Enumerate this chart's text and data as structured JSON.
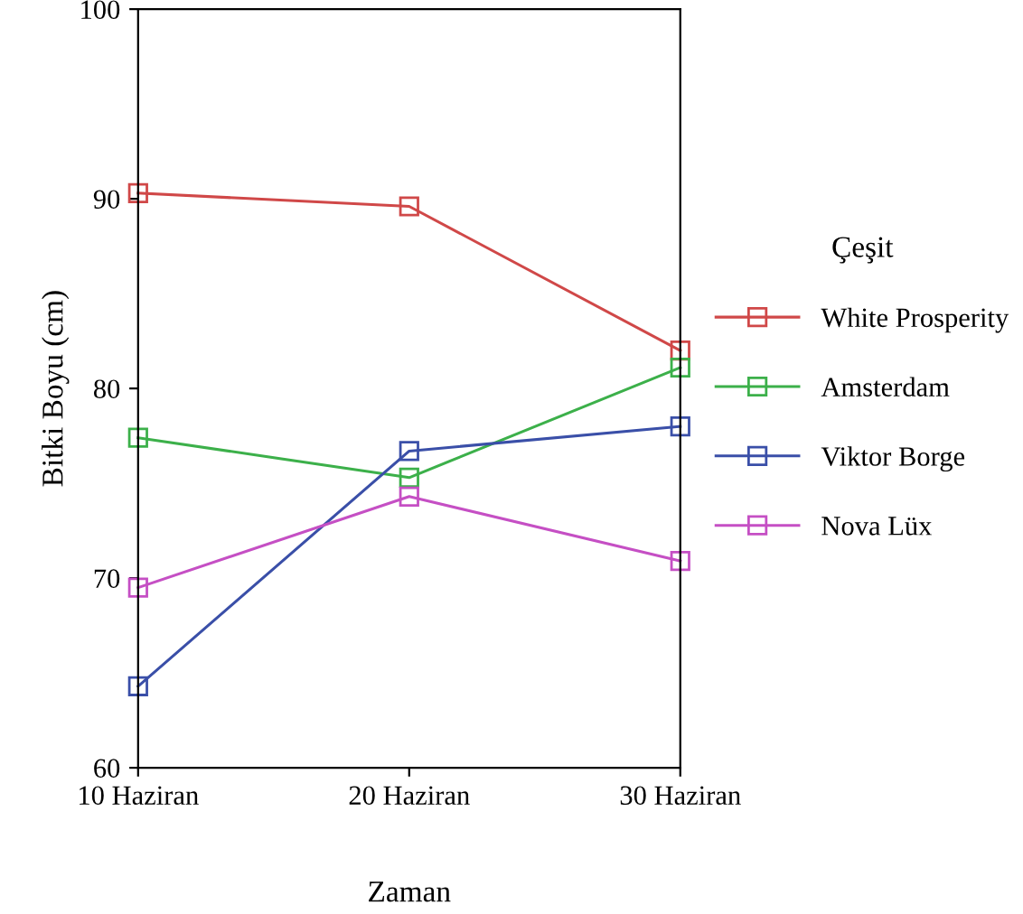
{
  "chart_data": {
    "type": "line",
    "xlabel": "Zaman",
    "ylabel": "Bitki Boyu (cm)",
    "legend_title": "Çeşit",
    "categories": [
      "10 Haziran",
      "20 Haziran",
      "30 Haziran"
    ],
    "series": [
      {
        "name": "White Prosperity",
        "color": "#d04848",
        "values": [
          90.3,
          89.6,
          82.0
        ]
      },
      {
        "name": "Amsterdam",
        "color": "#3cb04a",
        "values": [
          77.4,
          75.3,
          81.1
        ]
      },
      {
        "name": "Viktor Borge",
        "color": "#3a4fa8",
        "values": [
          64.3,
          76.7,
          78.0
        ]
      },
      {
        "name": "Nova Lüx",
        "color": "#c54fc4",
        "values": [
          69.5,
          74.3,
          70.9
        ]
      }
    ],
    "ylim": [
      60,
      100
    ],
    "yticks": [
      60,
      70,
      80,
      90,
      100
    ],
    "grid": false,
    "legend": "right",
    "marker": "square",
    "line_style": "solid"
  }
}
